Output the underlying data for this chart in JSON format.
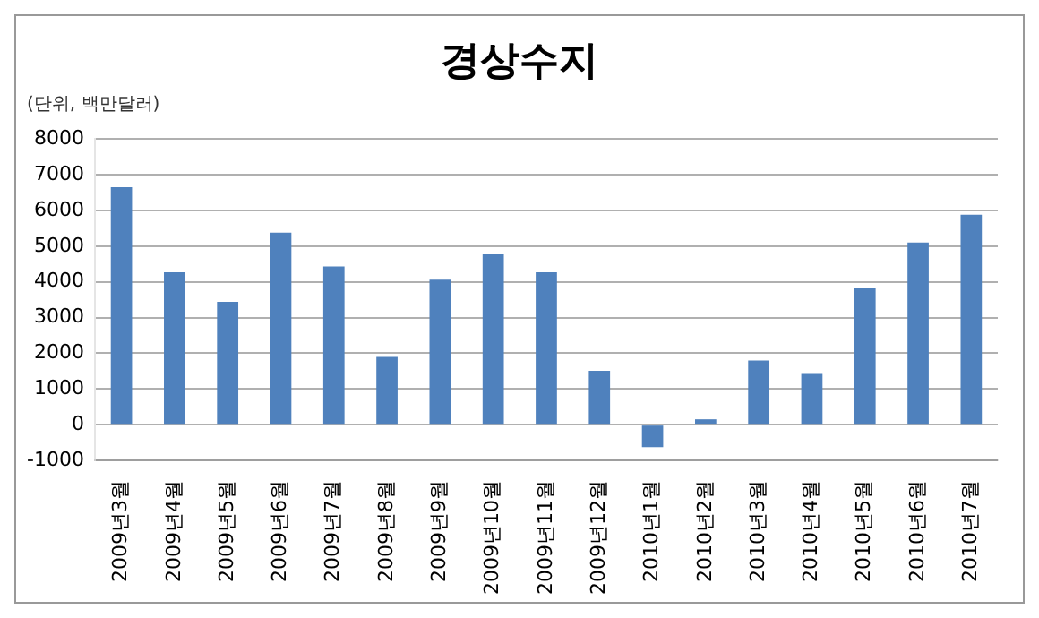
{
  "chart_data": {
    "type": "bar",
    "title": "경상수지",
    "ylabel": "(단위, 백만달러)",
    "categories": [
      "2009년3월",
      "2009년4월",
      "2009년5월",
      "2009년6월",
      "2009년7월",
      "2009년8월",
      "2009년9월",
      "2009년10월",
      "2009년11월",
      "2009년12월",
      "2010년1월",
      "2010년2월",
      "2010년3월",
      "2010년4월",
      "2010년5월",
      "2010년6월",
      "2010년7월"
    ],
    "values": [
      6650,
      4270,
      3440,
      5380,
      4430,
      1900,
      4060,
      4770,
      4270,
      1510,
      -630,
      150,
      1800,
      1420,
      3820,
      5100,
      5880
    ],
    "color": "#4f81bd",
    "ylim": [
      -1000,
      8000
    ],
    "yticks": [
      -1000,
      0,
      1000,
      2000,
      3000,
      4000,
      5000,
      6000,
      7000,
      8000
    ],
    "grid": "y",
    "legend": false
  }
}
